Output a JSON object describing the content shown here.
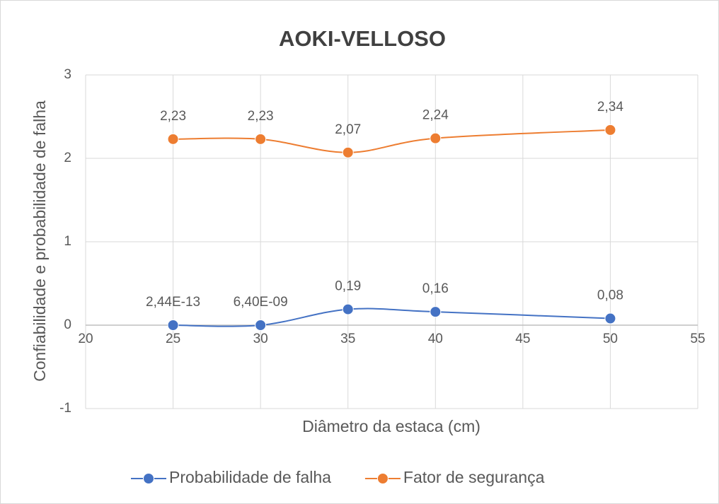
{
  "chart_data": {
    "type": "line",
    "title": "AOKI-VELLOSO",
    "xlabel": "Diâmetro da estaca (cm)",
    "ylabel": "Confiabilidade e probabilidade de falha",
    "x": [
      25,
      30,
      35,
      40,
      50
    ],
    "series": [
      {
        "name": "Probabilidade de falha",
        "color": "#4472c4",
        "values": [
          2.44e-13,
          6.4e-09,
          0.19,
          0.16,
          0.08
        ],
        "value_labels": [
          "2,44E-13",
          "6,40E-09",
          "0,19",
          "0,16",
          "0,08"
        ]
      },
      {
        "name": "Fator de segurança",
        "color": "#ed7d31",
        "values": [
          2.23,
          2.23,
          2.07,
          2.24,
          2.34
        ],
        "value_labels": [
          "2,23",
          "2,23",
          "2,07",
          "2,24",
          "2,34"
        ]
      }
    ],
    "xlim": [
      20,
      55
    ],
    "xticks": [
      20,
      25,
      30,
      35,
      40,
      45,
      50,
      55
    ],
    "ylim": [
      -1,
      3
    ],
    "yticks": [
      -1,
      0,
      1,
      2,
      3
    ],
    "grid": true,
    "smooth": true,
    "legend": "bottom"
  }
}
